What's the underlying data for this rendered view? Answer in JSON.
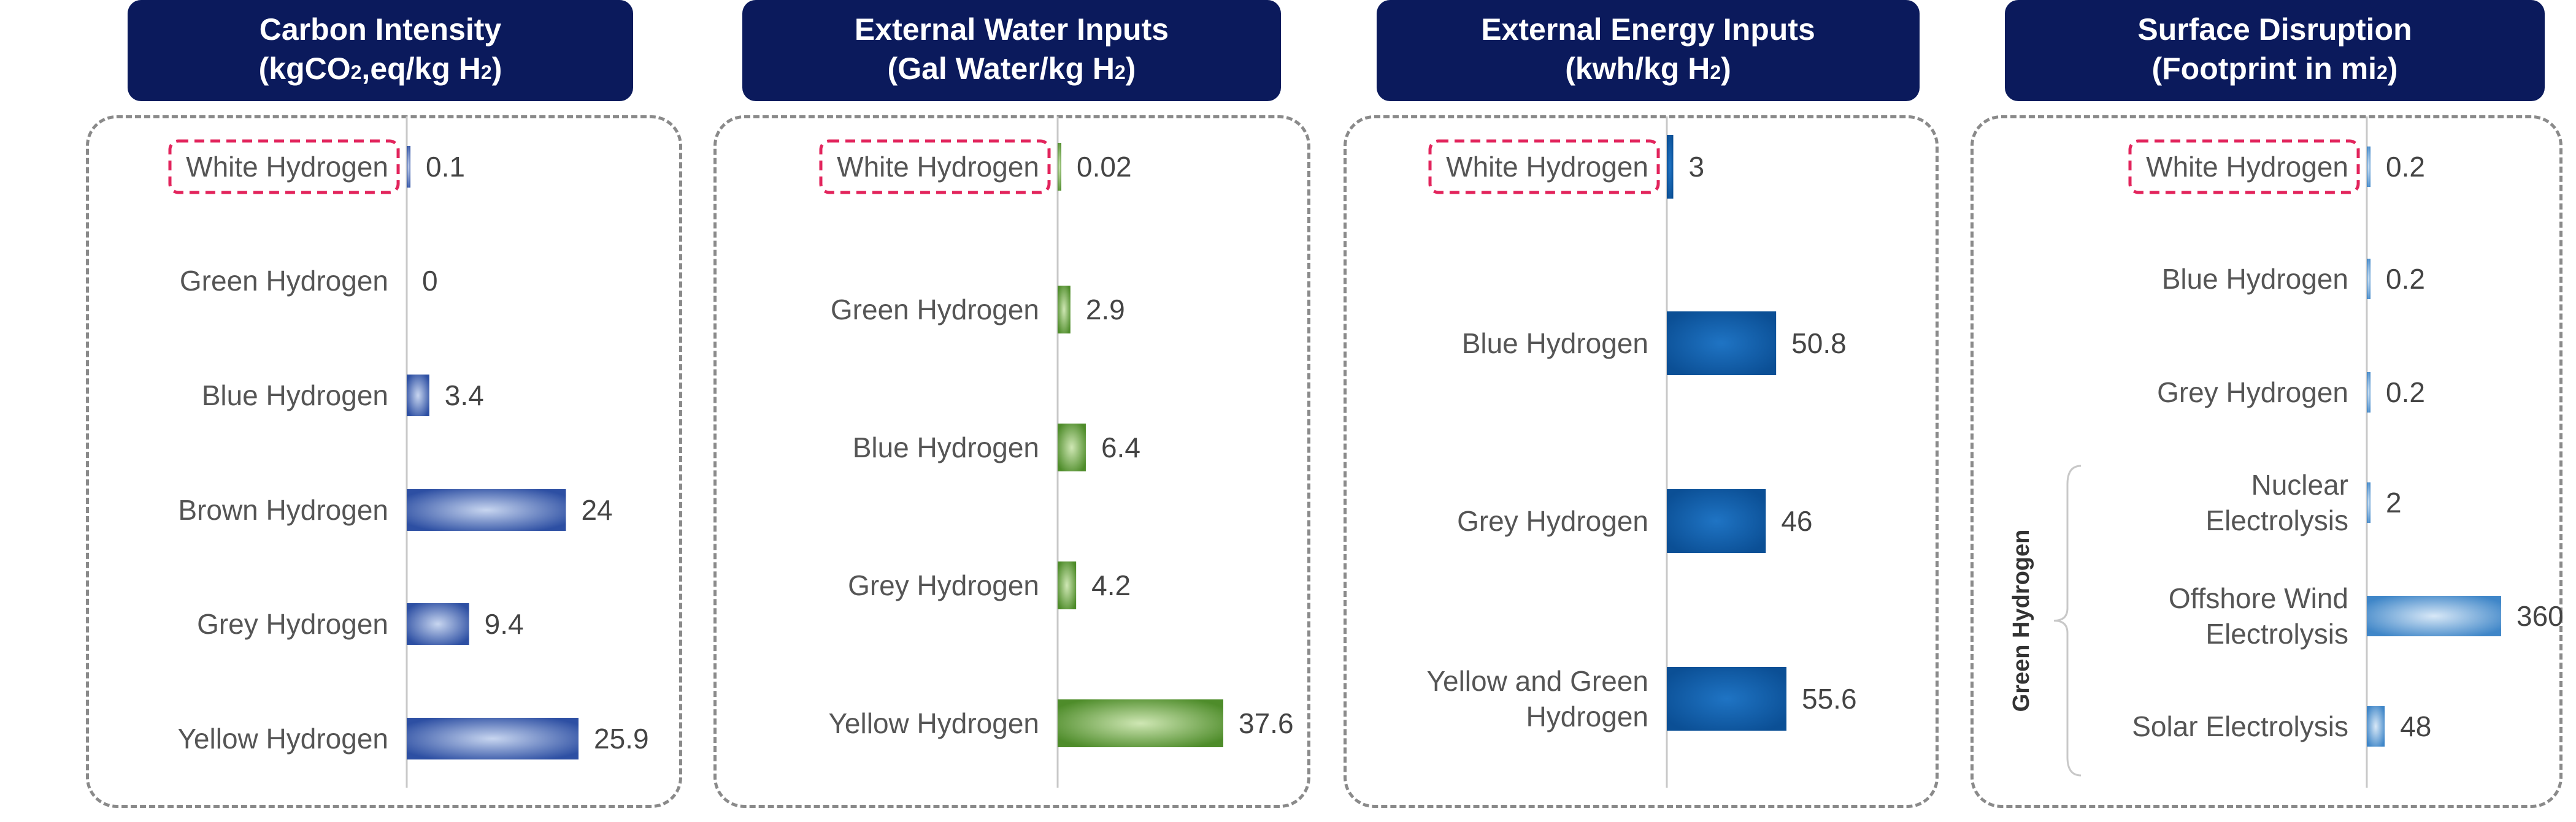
{
  "colors": {
    "header_bg": "#0b1a5c",
    "header_text": "#ffffff",
    "highlight_box": "#e2245c",
    "axis_line": "#c8c8c8",
    "panel_border": "#8a8a8a"
  },
  "panels": [
    {
      "title": "Carbon Intensity",
      "unit_parts": [
        "(kgCO",
        "2",
        ",eq/kg H",
        "2",
        ")"
      ],
      "unit_styles": [
        "n",
        "sub",
        "n",
        "sub",
        "n"
      ]
    },
    {
      "title": "External Water Inputs",
      "unit_parts": [
        "(Gal Water/kg H",
        "2",
        ")"
      ],
      "unit_styles": [
        "n",
        "sub",
        "n"
      ]
    },
    {
      "title": "External Energy Inputs",
      "unit_parts": [
        "(kwh/kg H",
        "2",
        ")"
      ],
      "unit_styles": [
        "n",
        "sub",
        "n"
      ]
    },
    {
      "title": "Surface Disruption",
      "unit_parts": [
        "(Footprint in mi",
        "2",
        ")"
      ],
      "unit_styles": [
        "n",
        "sup",
        "n"
      ]
    }
  ],
  "chart_data": [
    {
      "type": "bar",
      "orientation": "horizontal",
      "title": "Carbon Intensity (kgCO2,eq/kg H2)",
      "categories": [
        "White Hydrogen",
        "Green Hydrogen",
        "Blue Hydrogen",
        "Brown Hydrogen",
        "Grey Hydrogen",
        "Yellow Hydrogen"
      ],
      "values": [
        0.1,
        0,
        3.4,
        24,
        9.4,
        25.9
      ],
      "value_labels": [
        "0.1",
        "0",
        "3.4",
        "24",
        "9.4",
        "25.9"
      ],
      "highlighted_category": "White Hydrogen",
      "bar_color": "#2d4fa3",
      "xlim": [
        0,
        25.9
      ],
      "grid": false
    },
    {
      "type": "bar",
      "orientation": "horizontal",
      "title": "External Water Inputs (Gal Water/kg H2)",
      "categories": [
        "White Hydrogen",
        "Green Hydrogen",
        "Blue Hydrogen",
        "Grey Hydrogen",
        "Yellow Hydrogen"
      ],
      "values": [
        0.02,
        2.9,
        6.4,
        4.2,
        37.6
      ],
      "value_labels": [
        "0.02",
        "2.9",
        "6.4",
        "4.2",
        "37.6"
      ],
      "highlighted_category": "White Hydrogen",
      "bar_color": "#4e8c2a",
      "xlim": [
        0,
        37.6
      ],
      "grid": false
    },
    {
      "type": "bar",
      "orientation": "horizontal",
      "title": "External Energy Inputs (kwh/kg H2)",
      "categories": [
        "White Hydrogen",
        [
          "Blue Hydrogen"
        ],
        [
          "Grey Hydrogen"
        ],
        [
          "Yellow and Green",
          "Hydrogen"
        ]
      ],
      "values": [
        3,
        50.8,
        46,
        55.6
      ],
      "value_labels": [
        "3",
        "50.8",
        "46",
        "55.6"
      ],
      "highlighted_category": "White Hydrogen",
      "bar_color": "#0f63b3",
      "xlim": [
        0,
        55.6
      ],
      "grid": false
    },
    {
      "type": "bar",
      "orientation": "horizontal",
      "title": "Surface Disruption (Footprint in mi2)",
      "categories": [
        "White Hydrogen",
        [
          "Blue Hydrogen"
        ],
        [
          "Grey Hydrogen"
        ],
        [
          "Nuclear",
          "Electrolysis"
        ],
        [
          "Offshore Wind",
          "Electrolysis"
        ],
        [
          "Solar Electrolysis"
        ]
      ],
      "values": [
        0.2,
        0.2,
        0.2,
        2,
        360,
        48
      ],
      "value_labels": [
        "0.2",
        "0.2",
        "0.2",
        "2",
        "360",
        "48"
      ],
      "highlighted_category": "White Hydrogen",
      "group_label": "Green Hydrogen",
      "bar_color": "#3f86c8",
      "xlim": [
        0,
        360
      ],
      "grid": false
    }
  ]
}
